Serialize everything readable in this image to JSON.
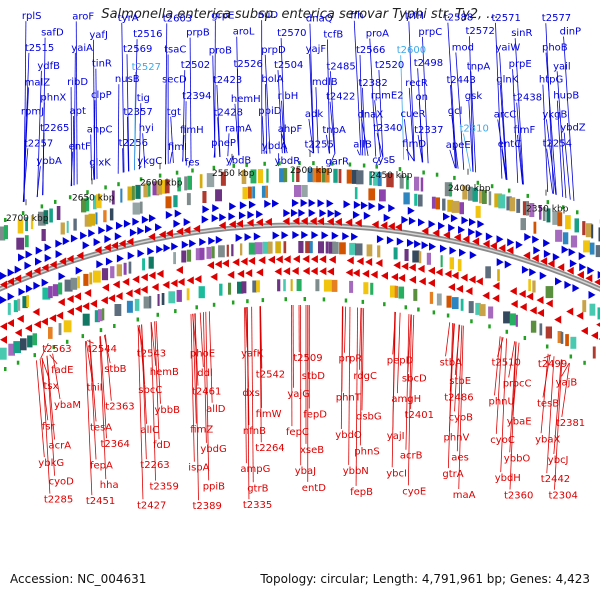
{
  "title": "Salmonella enterica subsp. enterica serovar Typhi str. Ty2, ...",
  "footer": {
    "accession": "Accession: NC_004631",
    "topology": "Topology: circular; Length: 4,791,961 bp; Genes: 4,423"
  },
  "colors": {
    "forward_genes": "#0000dd",
    "reverse_genes": "#dd0000",
    "highlight_genes": "#3fa9e8",
    "backbone": "#888888"
  },
  "ticks": [
    "2700 kbp",
    "2650 kbp",
    "2600 kbp",
    "2550 kbp",
    "2500 kbp",
    "2450 kbp",
    "2400 kbp",
    "2350 kbp"
  ],
  "forward_labels": [
    "rplS",
    "aroF",
    "tyrA",
    "t2603",
    "grpE",
    "nuD",
    "dnaQ",
    "ffh",
    "trfH",
    "t2588",
    "t2571",
    "t2577",
    "safD",
    "yafJ",
    "t2516",
    "prpB",
    "aroL",
    "t2570",
    "tcfB",
    "proA",
    "prpC",
    "t2572",
    "sinR",
    "dinP",
    "t2515",
    "yaiA",
    "t2569",
    "tsaC",
    "proB",
    "prpD",
    "yajF",
    "t2566",
    "t2600",
    "mod",
    "yaiW",
    "phoB",
    "ydfB",
    "tinR",
    "t2527",
    "t2502",
    "t2526",
    "t2504",
    "t2485",
    "t2520",
    "t2498",
    "tnpA",
    "prpE",
    "yail",
    "malZ",
    "ribD",
    "nusB",
    "secD",
    "t2423",
    "bolA",
    "mdlB",
    "t2382",
    "recR",
    "t2443",
    "glnK",
    "htpG",
    "phnX",
    "clpP",
    "tig",
    "t2394",
    "hemH",
    "ribH",
    "t2422",
    "rpmE2",
    "on",
    "gsk",
    "t2438",
    "hupB",
    "rpmJ",
    "apt",
    "t2357",
    "tgt",
    "t2428",
    "ppiD",
    "adk",
    "dnaX",
    "cueR",
    "gcl",
    "arcC",
    "ykgB",
    "t2265",
    "ahpC",
    "hyi",
    "fimH",
    "ramA",
    "ahpF",
    "tnpA",
    "t2340",
    "t2337",
    "t2310",
    "fimF",
    "ybdZ",
    "t2257",
    "entF",
    "t2256",
    "fimI",
    "pheP",
    "ybdA",
    "t2255",
    "allB",
    "fimD",
    "apeE",
    "entC",
    "t2254",
    "ybbA",
    "glxK",
    "ykgC",
    "fes",
    "ybdB",
    "ybdR",
    "garR",
    "cysS"
  ],
  "reverse_labels": [
    "t2563",
    "t2544",
    "t2543",
    "phoE",
    "yafK",
    "t2509",
    "prpR",
    "pepD",
    "stbA",
    "t2510",
    "t2499",
    "fadE",
    "stbB",
    "hemB",
    "ddl",
    "t2542",
    "stbD",
    "rdgC",
    "sbcD",
    "stbE",
    "procC",
    "yajB",
    "tsx",
    "thiI",
    "sbcC",
    "t2461",
    "dxs",
    "yajG",
    "phnT",
    "amgH",
    "t2486",
    "phnU",
    "tesB",
    "ybaM",
    "t2363",
    "ybbB",
    "allD",
    "fimW",
    "fepD",
    "dsbG",
    "t2401",
    "cyoB",
    "ybaE",
    "t2381",
    "fsr",
    "tesA",
    "allC",
    "fimZ",
    "nfnB",
    "fepC",
    "ybdO",
    "yajI",
    "phnV",
    "cyoC",
    "ybaX",
    "acrA",
    "t2364",
    "fdD",
    "ybdG",
    "t2264",
    "xseB",
    "phnS",
    "acrB",
    "aes",
    "ybbO",
    "ybcJ",
    "ybkG",
    "fepA",
    "t2263",
    "ispA",
    "ampG",
    "ybaJ",
    "ybbN",
    "ybcI",
    "gtrA",
    "ybdH",
    "t2442",
    "cyoD",
    "hha",
    "t2359",
    "ppiB",
    "gtrB",
    "entD",
    "fepB",
    "cyoE",
    "maA",
    "t2360",
    "t2304",
    "t2285",
    "t2451",
    "t2427",
    "t2389",
    "t2335"
  ]
}
